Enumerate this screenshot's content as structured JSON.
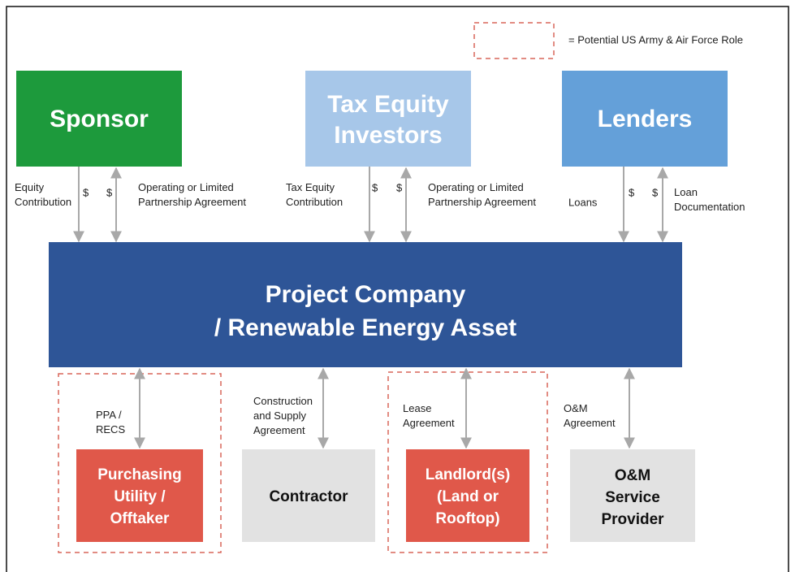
{
  "legend": {
    "label": "= Potential US Army & Air Force Role"
  },
  "nodes": [
    {
      "lines": [
        "Sponsor"
      ]
    },
    {
      "lines": [
        "Tax Equity",
        "Investors"
      ]
    },
    {
      "lines": [
        "Lenders"
      ]
    },
    {
      "lines": [
        "Project Company",
        "/ Renewable Energy Asset"
      ]
    },
    {
      "lines": [
        "Purchasing",
        "Utility /",
        "Offtaker"
      ]
    },
    {
      "lines": [
        "Contractor"
      ]
    },
    {
      "lines": [
        "Landlord(s)",
        "(Land or",
        "Rooftop)"
      ]
    },
    {
      "lines": [
        "O&M",
        "Service",
        "Provider"
      ]
    }
  ],
  "links": [
    {
      "lines": [
        "Equity",
        "Contribution"
      ]
    },
    {
      "lines": [
        "$"
      ]
    },
    {
      "lines": [
        "$"
      ]
    },
    {
      "lines": [
        "Operating or Limited",
        "Partnership Agreement"
      ]
    },
    {
      "lines": [
        "Tax Equity",
        "Contribution"
      ]
    },
    {
      "lines": [
        "$"
      ]
    },
    {
      "lines": [
        "$"
      ]
    },
    {
      "lines": [
        "Operating or Limited",
        "Partnership Agreement"
      ]
    },
    {
      "lines": [
        "Loans"
      ]
    },
    {
      "lines": [
        "$"
      ]
    },
    {
      "lines": [
        "$"
      ]
    },
    {
      "lines": [
        "Loan",
        "Documentation"
      ]
    },
    {
      "lines": [
        "PPA /",
        "RECS"
      ]
    },
    {
      "lines": [
        "Construction",
        "and Supply",
        "Agreement"
      ]
    },
    {
      "lines": [
        "Lease",
        "Agreement"
      ]
    },
    {
      "lines": [
        "O&M",
        "Agreement"
      ]
    }
  ]
}
